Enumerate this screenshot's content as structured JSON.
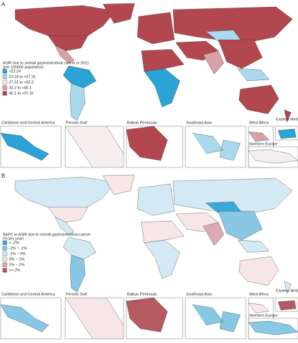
{
  "panels": [
    {
      "label": "A",
      "legend_title": [
        "ASIR due to overall gastrointestinal cancer in 2021",
        "(per 100000 population)"
      ],
      "legend": [
        {
          "label": "<22.24",
          "color": "#2ba3d5"
        },
        {
          "label": "22.24 to <27.31",
          "color": "#a9d9ec"
        },
        {
          "label": "27.31 to <32.2",
          "color": "#f6eeee"
        },
        {
          "label": "32.2 to <40.1",
          "color": "#d8a1a8"
        },
        {
          "label": "40.1 to <97.32",
          "color": "#b3474f"
        }
      ],
      "insets": [
        "Caribbean and Central America",
        "Persian Gulf",
        "Balkan Peninsula",
        "Southeast Asia",
        "West Africa",
        "Eastern Mediterranean",
        "Northern Europe"
      ]
    },
    {
      "label": "B",
      "legend_title": [
        "AAPC in ASIR due to overall gastrointestinal cancer",
        "(% per year)"
      ],
      "legend": [
        {
          "label": "< -2%",
          "color": "#3aa9d9"
        },
        {
          "label": "-2% ~ -1%",
          "color": "#88c8e4"
        },
        {
          "label": "-1% ~ 0%",
          "color": "#d3eaf4"
        },
        {
          "label": "0% ~ 1%",
          "color": "#f6e6e8"
        },
        {
          "label": "1% ~ 2%",
          "color": "#dcaab0"
        },
        {
          "label": ">= 2%",
          "color": "#b55a61"
        }
      ],
      "insets": [
        "Caribbean and Central America",
        "Persian Gulf",
        "Balkan Peninsula",
        "Southeast Asia",
        "West Africa",
        "Eastern Mediterranean",
        "Northern Europe"
      ]
    }
  ]
}
